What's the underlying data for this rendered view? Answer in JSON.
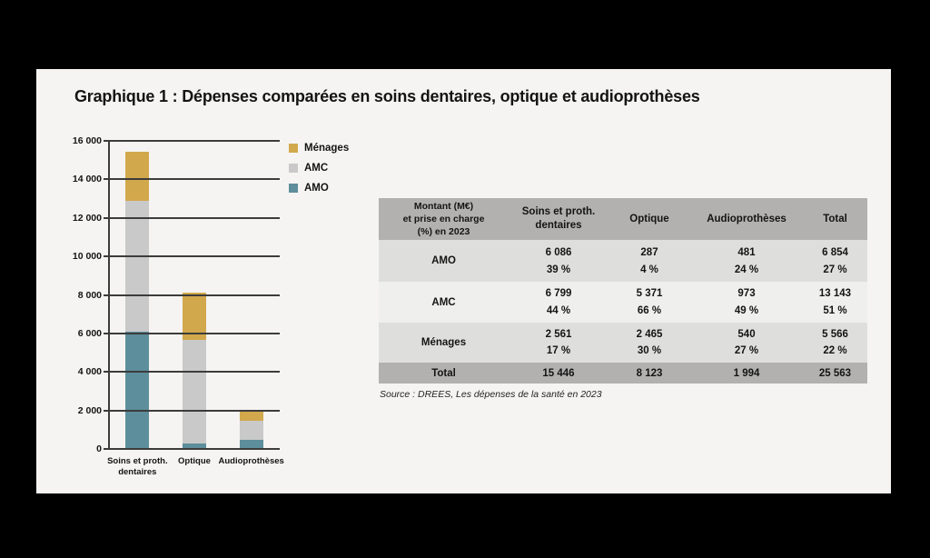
{
  "title": "Graphique 1 : Dépenses comparées en soins dentaires, optique et audioprothèses",
  "source_note": "Source : DREES, Les dépenses de la santé en 2023",
  "colors": {
    "menages": "#d2a84c",
    "amc": "#c9c9c9",
    "amo": "#5d8e9c",
    "axis": "#3c3c3c",
    "card_background": "#f5f4f2",
    "table_header_gray": "#b2b1b0",
    "row_gray": "#dededd",
    "row_light": "#efefee"
  },
  "chart_data": {
    "type": "bar",
    "stacked": true,
    "title": "",
    "xlabel": "",
    "ylabel": "",
    "categories": [
      "Soins et proth.\ndentaires",
      "Optique",
      "Audioprothèses"
    ],
    "series": [
      {
        "name": "AMO",
        "color": "#5d8e9c",
        "values": [
          6086,
          287,
          481
        ]
      },
      {
        "name": "AMC",
        "color": "#c9c9c9",
        "values": [
          6799,
          5371,
          973
        ]
      },
      {
        "name": "Ménages",
        "color": "#d2a84c",
        "values": [
          2561,
          2465,
          540
        ]
      }
    ],
    "totals": [
      15446,
      8123,
      1994
    ],
    "ylim": [
      0,
      16000
    ],
    "ytick_step": 2000,
    "ytick_labels": [
      "0",
      "2 000",
      "4 000",
      "6 000",
      "8 000",
      "10 000",
      "12 000",
      "14 000",
      "16 000"
    ],
    "grid": true,
    "legend_position": "right-top",
    "legend": [
      {
        "label": "Ménages",
        "color": "#d2a84c"
      },
      {
        "label": "AMC",
        "color": "#c9c9c9"
      },
      {
        "label": "AMO",
        "color": "#5d8e9c"
      }
    ]
  },
  "table": {
    "corner_header": "Montant (M€)\net prise en charge\n(%) en 2023",
    "column_headers": [
      "Soins et proth.\ndentaires",
      "Optique",
      "Audioprothèses",
      "Total"
    ],
    "rows": [
      {
        "label": "AMO",
        "values": [
          "6 086",
          "287",
          "481",
          "6 854"
        ],
        "percents": [
          "39 %",
          "4 %",
          "24 %",
          "27 %"
        ]
      },
      {
        "label": "AMC",
        "values": [
          "6 799",
          "5 371",
          "973",
          "13 143"
        ],
        "percents": [
          "44 %",
          "66 %",
          "49 %",
          "51 %"
        ]
      },
      {
        "label": "Ménages",
        "values": [
          "2 561",
          "2 465",
          "540",
          "5 566"
        ],
        "percents": [
          "17 %",
          "30 %",
          "27 %",
          "22 %"
        ]
      }
    ],
    "total_row": {
      "label": "Total",
      "values": [
        "15 446",
        "8 123",
        "1 994",
        "25 563"
      ]
    }
  }
}
